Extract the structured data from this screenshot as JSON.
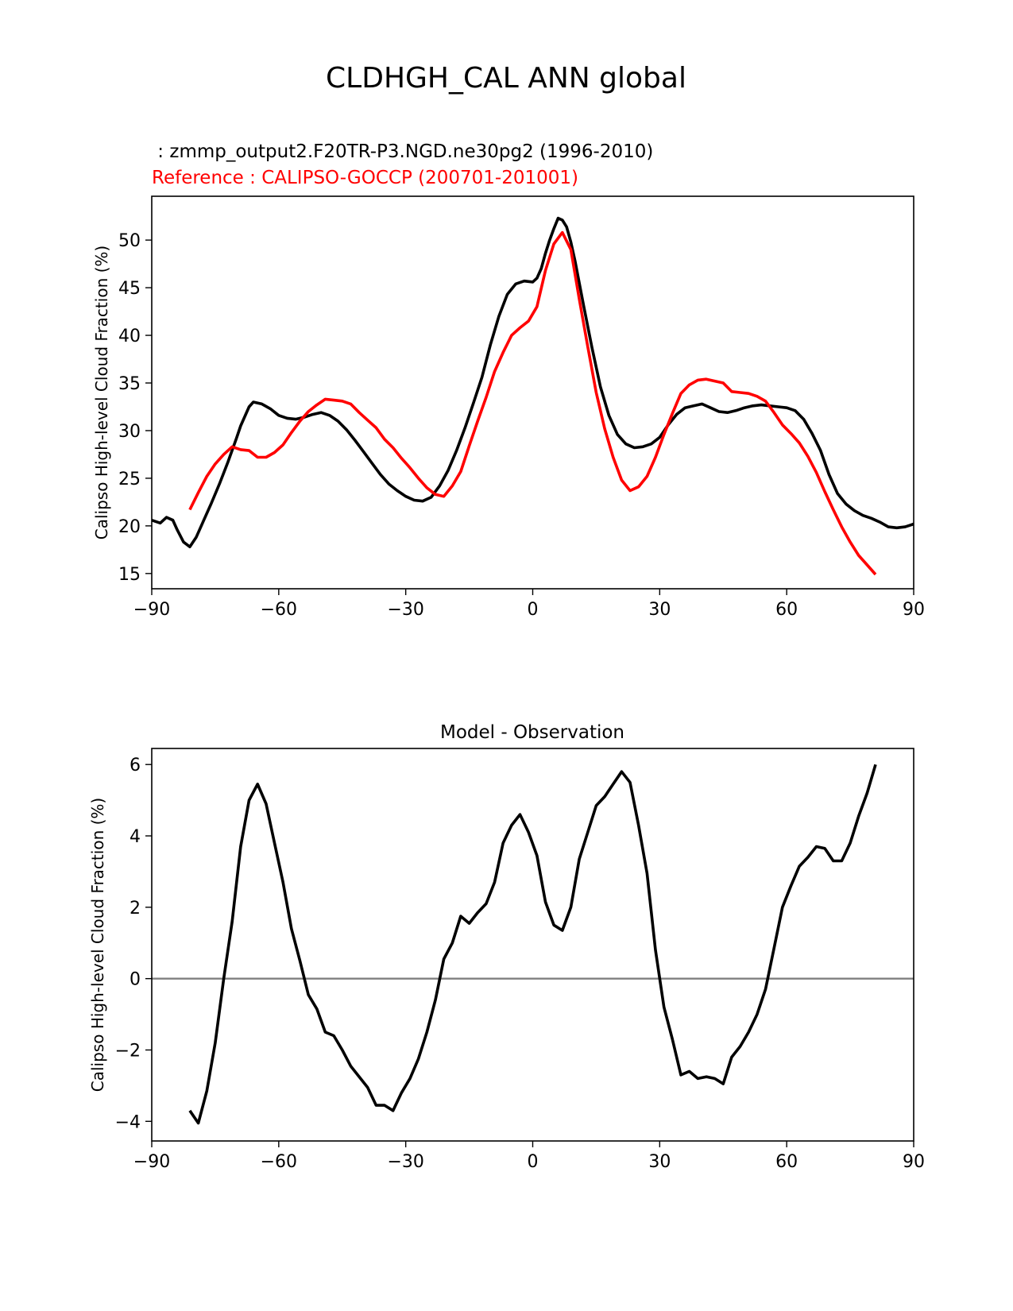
{
  "figure_title": "CLDHGH_CAL ANN global",
  "colors": {
    "model": "#000000",
    "reference": "#ff0000",
    "zero_line": "#808080"
  },
  "chart_data": [
    {
      "type": "line",
      "title": "",
      "model_label": " : zmmp_output2.F20TR-P3.NGD.ne30pg2 (1996-2010)",
      "reference_label": "Reference : CALIPSO-GOCCP (200701-201001)",
      "xlabel": "",
      "ylabel": "Calipso High-level Cloud Fraction (%)",
      "xlim": [
        -90,
        90
      ],
      "ylim": [
        13.4,
        54.6
      ],
      "xticks": [
        -90,
        -60,
        -30,
        0,
        30,
        60,
        90
      ],
      "xtick_labels": [
        "−90",
        "−60",
        "−30",
        "0",
        "30",
        "60",
        "90"
      ],
      "yticks": [
        15,
        20,
        25,
        30,
        35,
        40,
        45,
        50
      ],
      "ytick_labels": [
        "15",
        "20",
        "25",
        "30",
        "35",
        "40",
        "45",
        "50"
      ],
      "series": [
        {
          "name": "Model",
          "x": [
            -90,
            -88,
            -86.5,
            -85,
            -84,
            -82.5,
            -81,
            -79.5,
            -78,
            -76,
            -74,
            -72,
            -70,
            -69,
            -68,
            -67,
            -66,
            -64,
            -62,
            -60,
            -58,
            -56,
            -54,
            -52,
            -50,
            -48,
            -46,
            -44,
            -42,
            -40,
            -38,
            -36,
            -34,
            -32,
            -30,
            -28,
            -26,
            -24,
            -22,
            -20,
            -18,
            -16,
            -14,
            -12,
            -10,
            -8,
            -6,
            -4,
            -2,
            0,
            1,
            2,
            3,
            4,
            5,
            6,
            7,
            8,
            9,
            10,
            12,
            14,
            16,
            18,
            20,
            22,
            24,
            26,
            28,
            30,
            32,
            34,
            36,
            38,
            40,
            42,
            44,
            46,
            48,
            50,
            52,
            54,
            56,
            58,
            60,
            62,
            64,
            66,
            68,
            70,
            72,
            74,
            76,
            78,
            80,
            82,
            84,
            86,
            88,
            90
          ],
          "values": [
            20.6,
            20.3,
            20.9,
            20.6,
            19.6,
            18.3,
            17.8,
            18.8,
            20.3,
            22.3,
            24.4,
            26.7,
            29.2,
            30.5,
            31.5,
            32.5,
            33.0,
            32.8,
            32.3,
            31.6,
            31.3,
            31.2,
            31.4,
            31.7,
            31.9,
            31.6,
            31.0,
            30.1,
            29.0,
            27.8,
            26.6,
            25.4,
            24.4,
            23.7,
            23.1,
            22.7,
            22.6,
            23.0,
            24.2,
            25.8,
            27.9,
            30.3,
            32.9,
            35.6,
            39.0,
            42.0,
            44.3,
            45.4,
            45.7,
            45.6,
            46.0,
            47.0,
            48.6,
            50.0,
            51.2,
            52.3,
            52.1,
            51.4,
            49.8,
            47.8,
            43.2,
            38.7,
            34.6,
            31.6,
            29.6,
            28.6,
            28.2,
            28.3,
            28.6,
            29.3,
            30.6,
            31.7,
            32.4,
            32.6,
            32.8,
            32.4,
            32.0,
            31.9,
            32.1,
            32.4,
            32.6,
            32.7,
            32.6,
            32.5,
            32.4,
            32.1,
            31.2,
            29.7,
            27.9,
            25.4,
            23.4,
            22.3,
            21.6,
            21.1,
            20.8,
            20.4,
            19.9,
            19.8,
            19.9,
            20.2
          ]
        },
        {
          "name": "Reference",
          "x": [
            -81,
            -79,
            -77,
            -75,
            -73,
            -71,
            -69,
            -67,
            -65,
            -63,
            -61,
            -59,
            -57,
            -55,
            -53,
            -51,
            -49,
            -47,
            -45,
            -43,
            -41,
            -39,
            -37,
            -35,
            -33,
            -31,
            -29,
            -27,
            -25,
            -23,
            -21,
            -19,
            -17,
            -15,
            -13,
            -11,
            -9,
            -7,
            -5,
            -3,
            -1,
            1,
            3,
            5,
            7,
            9,
            11,
            13,
            15,
            17,
            19,
            21,
            23,
            25,
            27,
            29,
            31,
            33,
            35,
            37,
            39,
            41,
            43,
            45,
            47,
            49,
            51,
            53,
            55,
            57,
            59,
            61,
            63,
            65,
            67,
            69,
            71,
            73,
            75,
            77,
            79,
            81
          ],
          "values": [
            21.7,
            23.5,
            25.2,
            26.5,
            27.5,
            28.3,
            28.0,
            27.9,
            27.2,
            27.2,
            27.7,
            28.5,
            29.8,
            31.0,
            32.0,
            32.7,
            33.3,
            33.2,
            33.1,
            32.8,
            31.9,
            31.1,
            30.3,
            29.1,
            28.2,
            27.1,
            26.1,
            25.0,
            24.0,
            23.3,
            23.1,
            24.2,
            25.7,
            28.4,
            31.0,
            33.5,
            36.2,
            38.2,
            40.0,
            40.8,
            41.5,
            43.0,
            46.8,
            49.6,
            50.8,
            49.0,
            43.8,
            38.8,
            34.0,
            30.2,
            27.2,
            24.8,
            23.7,
            24.1,
            25.2,
            27.2,
            29.6,
            31.8,
            33.9,
            34.8,
            35.3,
            35.4,
            35.2,
            35.0,
            34.1,
            34.0,
            33.9,
            33.6,
            33.1,
            31.9,
            30.6,
            29.7,
            28.7,
            27.3,
            25.6,
            23.6,
            21.7,
            19.9,
            18.3,
            16.9,
            15.9,
            14.9
          ]
        }
      ]
    },
    {
      "type": "line",
      "title": "Model - Observation",
      "xlabel": "",
      "ylabel": "Calipso High-level Cloud Fraction (%)",
      "xlim": [
        -90,
        90
      ],
      "ylim": [
        -4.55,
        6.45
      ],
      "xticks": [
        -90,
        -60,
        -30,
        0,
        30,
        60,
        90
      ],
      "xtick_labels": [
        "−90",
        "−60",
        "−30",
        "0",
        "30",
        "60",
        "90"
      ],
      "yticks": [
        -4,
        -2,
        0,
        2,
        4,
        6
      ],
      "ytick_labels": [
        "−4",
        "−2",
        "0",
        "2",
        "4",
        "6"
      ],
      "zero_line": 0,
      "series": [
        {
          "name": "Model - Observation",
          "x": [
            -81,
            -79,
            -77,
            -75,
            -73,
            -71,
            -69,
            -67,
            -65,
            -63,
            -61,
            -59,
            -57,
            -55,
            -53,
            -51,
            -49,
            -47,
            -45,
            -43,
            -41,
            -39,
            -37,
            -35,
            -33,
            -31,
            -29,
            -27,
            -25,
            -23,
            -21,
            -19,
            -17,
            -15,
            -13,
            -11,
            -9,
            -7,
            -5,
            -3,
            -1,
            1,
            3,
            5,
            7,
            9,
            11,
            13,
            15,
            17,
            19,
            21,
            23,
            25,
            27,
            29,
            31,
            33,
            35,
            37,
            39,
            41,
            43,
            45,
            47,
            49,
            51,
            53,
            55,
            57,
            59,
            61,
            63,
            65,
            67,
            69,
            71,
            73,
            75,
            77,
            79,
            81
          ],
          "values": [
            -3.7,
            -4.05,
            -3.15,
            -1.8,
            0.0,
            1.6,
            3.7,
            5.0,
            5.45,
            4.9,
            3.8,
            2.7,
            1.4,
            0.5,
            -0.45,
            -0.85,
            -1.5,
            -1.6,
            -2.0,
            -2.45,
            -2.75,
            -3.05,
            -3.55,
            -3.55,
            -3.7,
            -3.2,
            -2.8,
            -2.25,
            -1.5,
            -0.6,
            0.55,
            1.0,
            1.75,
            1.55,
            1.85,
            2.1,
            2.7,
            3.8,
            4.3,
            4.6,
            4.1,
            3.45,
            2.15,
            1.5,
            1.35,
            2.0,
            3.35,
            4.1,
            4.85,
            5.1,
            5.45,
            5.8,
            5.5,
            4.3,
            2.95,
            0.8,
            -0.8,
            -1.7,
            -2.7,
            -2.6,
            -2.8,
            -2.75,
            -2.8,
            -2.95,
            -2.2,
            -1.9,
            -1.5,
            -1.0,
            -0.3,
            0.85,
            2.0,
            2.6,
            3.15,
            3.4,
            3.7,
            3.65,
            3.3,
            3.3,
            3.8,
            4.55,
            5.2,
            6.0
          ]
        }
      ]
    }
  ]
}
